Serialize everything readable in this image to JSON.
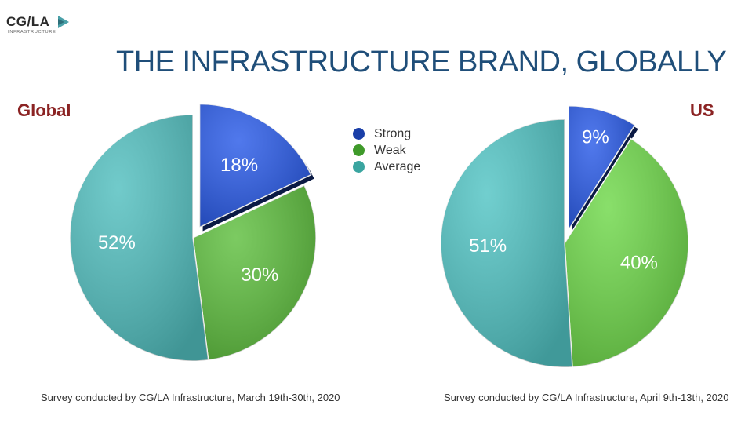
{
  "logo": {
    "text": "CG/LA",
    "subtext": "INFRASTRUCTURE"
  },
  "title": "THE INFRASTRUCTURE BRAND, GLOBALLY",
  "legend": [
    {
      "label": "Strong",
      "color": "#1a3fa8"
    },
    {
      "label": "Weak",
      "color": "#3f9a2a"
    },
    {
      "label": "Average",
      "color": "#3aa5a0"
    }
  ],
  "chart_data": [
    {
      "type": "pie",
      "title": "Global",
      "categories": [
        "Strong",
        "Weak",
        "Average"
      ],
      "values": [
        18,
        30,
        52
      ],
      "labels": [
        "18%",
        "30%",
        "52%"
      ],
      "exploded": "Strong",
      "colors": [
        "#2a5be8",
        "#5fbf3f",
        "#52bfbf"
      ]
    },
    {
      "type": "pie",
      "title": "US",
      "categories": [
        "Strong",
        "Weak",
        "Average"
      ],
      "values": [
        9,
        40,
        51
      ],
      "labels": [
        "9%",
        "40%",
        "51%"
      ],
      "exploded": "Strong",
      "colors": [
        "#2a5be8",
        "#6fd84a",
        "#52c4c4"
      ]
    }
  ],
  "captions": {
    "left": "Survey conducted by CG/LA Infrastructure, March 19th-30th, 2020",
    "right": "Survey conducted by CG/LA Infrastructure, April 9th-13th, 2020"
  }
}
